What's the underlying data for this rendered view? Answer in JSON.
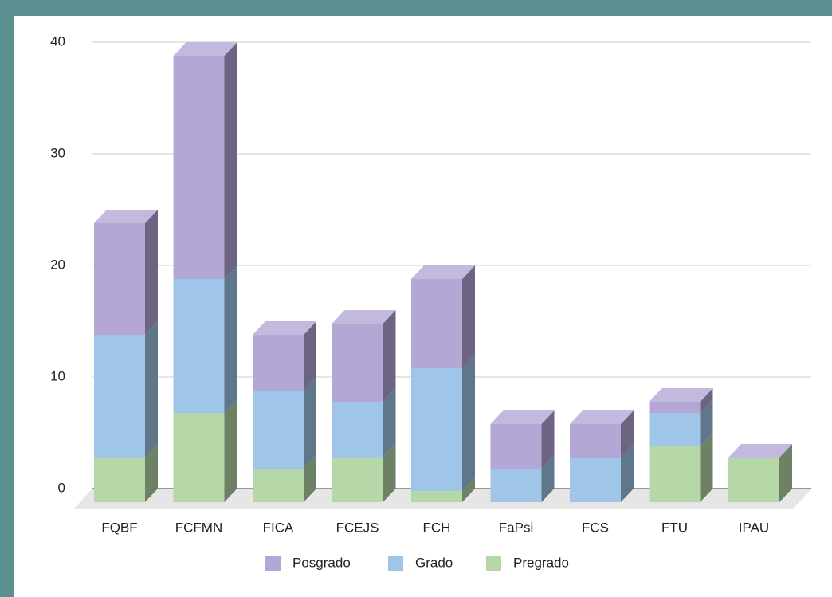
{
  "chart_data": {
    "type": "bar3d_stacked",
    "categories": [
      "FQBF",
      "FCFMN",
      "FICA",
      "FCEJS",
      "FCH",
      "FaPsi",
      "FCS",
      "FTU",
      "IPAU"
    ],
    "series": [
      {
        "name": "Pregrado",
        "color": "#b6d7a8",
        "values": [
          4,
          8,
          3,
          4,
          1,
          0,
          0,
          5,
          4
        ]
      },
      {
        "name": "Grado",
        "color": "#9fc5e8",
        "values": [
          11,
          12,
          7,
          5,
          11,
          3,
          4,
          3,
          0
        ]
      },
      {
        "name": "Posgrado",
        "color": "#b4a7d6",
        "values": [
          10,
          20,
          5,
          7,
          8,
          4,
          3,
          1,
          0
        ]
      }
    ],
    "ylim": [
      0,
      40
    ],
    "yticks": [
      0,
      10,
      20,
      30,
      40
    ],
    "grid": true
  }
}
